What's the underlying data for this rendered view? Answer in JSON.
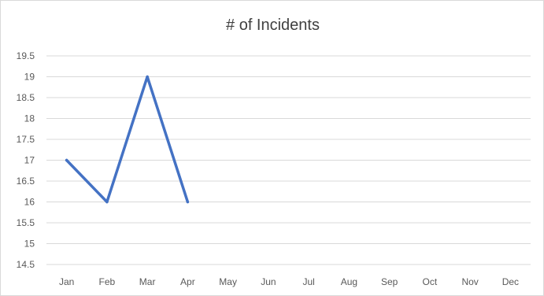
{
  "chart_data": {
    "type": "line",
    "title": "# of Incidents",
    "categories": [
      "Jan",
      "Feb",
      "Mar",
      "Apr",
      "May",
      "Jun",
      "Jul",
      "Aug",
      "Sep",
      "Oct",
      "Nov",
      "Dec"
    ],
    "series": [
      {
        "values": [
          17,
          16,
          19,
          16,
          null,
          null,
          null,
          null,
          null,
          null,
          null,
          null
        ]
      }
    ],
    "ylim": [
      14.5,
      19.5
    ],
    "yticks": [
      "14.5",
      "15",
      "15.5",
      "16",
      "16.5",
      "17",
      "17.5",
      "18",
      "18.5",
      "19",
      "19.5"
    ],
    "grid": true,
    "legend": "none",
    "colors": {
      "line": "#4472c4",
      "grid": "#d9d9d9",
      "text": "#595959"
    }
  }
}
